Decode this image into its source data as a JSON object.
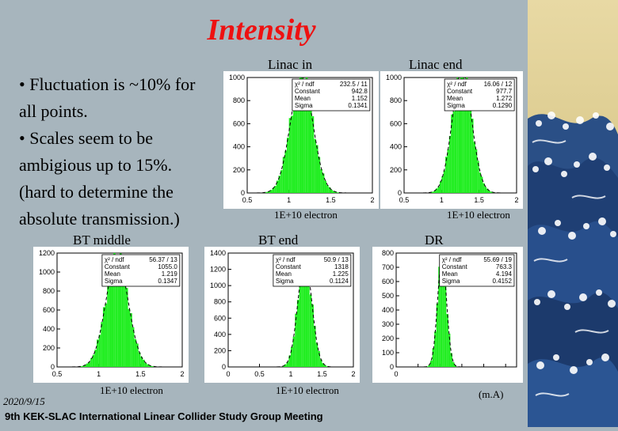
{
  "slide": {
    "title": "Intensity",
    "bullets": [
      "• Fluctuation is ~10% for",
      "all points.",
      "• Scales seem to be",
      "ambigious up to 15%.",
      "(hard to determine the",
      "absolute transmission.)"
    ],
    "footer_date": "2020/9/15",
    "footer_meeting": "9th KEK-SLAC International Linear Collider Study Group Meeting",
    "colors": {
      "title": "#ee1111",
      "background": "#a7b5bd",
      "histogram": "#22ee22"
    }
  },
  "chart_data": [
    {
      "type": "bar",
      "label": "Linac in",
      "xlabel": "1E+10 electron",
      "xlim": [
        0.5,
        2
      ],
      "ylim": [
        0,
        1000
      ],
      "yticks": [
        0,
        200,
        400,
        600,
        800,
        1000
      ],
      "xticks": [
        0.5,
        1,
        1.5,
        2
      ],
      "xtick_labels": [
        "0.5",
        "1",
        "1.5",
        "2"
      ],
      "stats": [
        [
          "χ² / ndf",
          "232.5 / 11"
        ],
        [
          "Constant",
          "942.8"
        ],
        [
          "Mean",
          "1.152"
        ],
        [
          "Sigma",
          "0.1341"
        ]
      ],
      "mean": 1.152,
      "sigma": 0.1341,
      "peak": 1040
    },
    {
      "type": "bar",
      "label": "Linac end",
      "xlabel": "1E+10 electron",
      "xlim": [
        0.5,
        2
      ],
      "ylim": [
        0,
        1000
      ],
      "yticks": [
        0,
        200,
        400,
        600,
        800,
        1000
      ],
      "xticks": [
        0.5,
        1,
        1.5,
        2
      ],
      "xtick_labels": [
        "0.5",
        "1",
        "1.5",
        "2"
      ],
      "stats": [
        [
          "χ² / ndf",
          "16.06 / 12"
        ],
        [
          "Constant",
          "977.7"
        ],
        [
          "Mean",
          "1.272"
        ],
        [
          "Sigma",
          "0.1290"
        ]
      ],
      "mean": 1.272,
      "sigma": 0.129,
      "peak": 1090
    },
    {
      "type": "bar",
      "label": "BT middle",
      "xlabel": "1E+10 electron",
      "xlim": [
        0.5,
        2
      ],
      "ylim": [
        0,
        1200
      ],
      "yticks": [
        0,
        200,
        400,
        600,
        800,
        1000,
        1200
      ],
      "xticks": [
        0.5,
        1,
        1.5,
        2
      ],
      "xtick_labels": [
        "0.5",
        "1",
        "1.5",
        "2"
      ],
      "stats": [
        [
          "χ² / ndf",
          "56.37 / 13"
        ],
        [
          "Constant",
          "1055.0"
        ],
        [
          "Mean",
          "1.219"
        ],
        [
          "Sigma",
          "0.1347"
        ]
      ],
      "mean": 1.219,
      "sigma": 0.1347,
      "peak": 1170
    },
    {
      "type": "bar",
      "label": "BT end",
      "xlabel": "1E+10 electron",
      "xlim": [
        0,
        2
      ],
      "ylim": [
        0,
        1400
      ],
      "yticks": [
        0,
        200,
        400,
        600,
        800,
        1000,
        1200,
        1400
      ],
      "xticks": [
        0,
        0.5,
        1,
        1.5,
        2
      ],
      "xtick_labels": [
        "0",
        "0.5",
        "1",
        "1.5",
        "2"
      ],
      "stats": [
        [
          "χ² / ndf",
          "50.9 / 13"
        ],
        [
          "Constant",
          "1318"
        ],
        [
          "Mean",
          "1.225"
        ],
        [
          "Sigma",
          "0.1124"
        ]
      ],
      "mean": 1.225,
      "sigma": 0.1124,
      "peak": 1350
    },
    {
      "type": "bar",
      "label": "DR",
      "xlabel": "(m.A)",
      "xlim": [
        0,
        11
      ],
      "ylim": [
        0,
        800
      ],
      "yticks": [
        0,
        100,
        200,
        300,
        400,
        500,
        600,
        700,
        800
      ],
      "xticks": [
        0,
        2,
        4,
        6,
        8,
        10
      ],
      "xtick_labels": [
        "0",
        "",
        "",
        "",
        "",
        ""
      ],
      "stats": [
        [
          "χ² / ndf",
          "55.69 / 19"
        ],
        [
          "Constant",
          "763.3"
        ],
        [
          "Mean",
          "4.194"
        ],
        [
          "Sigma",
          "0.4152"
        ]
      ],
      "mean": 4.194,
      "sigma": 0.4152,
      "peak": 790
    }
  ]
}
